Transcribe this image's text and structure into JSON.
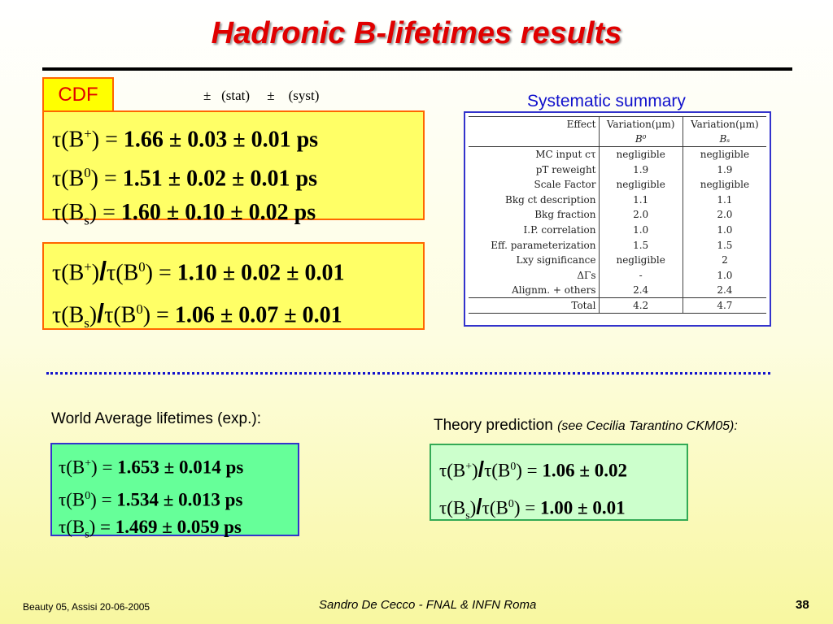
{
  "slide": {
    "title": "Hadronic B-lifetimes results",
    "cdf_label": "CDF",
    "stat_syst_header": "±   (stat)     ±    (syst)"
  },
  "fit_results": {
    "rows": [
      {
        "tau": "τ",
        "open": "(B",
        "sup": "+",
        "sub": "",
        "close": ")",
        "eq": " = ",
        "value": "1.66 ± 0.03 ± 0.01 ps"
      },
      {
        "tau": "τ",
        "open": "(B",
        "sup": "0",
        "sub": "",
        "close": ")",
        "eq": " = ",
        "value": "1.51 ± 0.02 ± 0.01 ps"
      },
      {
        "tau": "τ",
        "open": "(B",
        "sup": "",
        "sub": "s",
        "close": ")",
        "eq": " = ",
        "value": "1.60 ± 0.10 ± 0.02 ps"
      }
    ]
  },
  "ratio_results": {
    "rows": [
      {
        "num_open": "(B",
        "num_sup": "+",
        "num_sub": "",
        "den_sup": "0",
        "value": "1.10 ± 0.02 ± 0.01"
      },
      {
        "num_open": "(B",
        "num_sup": "",
        "num_sub": "s",
        "den_sup": "0",
        "value": "1.06 ± 0.07 ± 0.01"
      }
    ]
  },
  "systematics": {
    "title": "Systematic summary",
    "headers": [
      "Effect",
      "Variation(μm)",
      "Variation(μm)"
    ],
    "subheaders": [
      "",
      "B⁰",
      "Bₛ"
    ],
    "rows": [
      [
        "MC input cτ",
        "negligible",
        "negligible"
      ],
      [
        "pT reweight",
        "1.9",
        "1.9"
      ],
      [
        "Scale Factor",
        "negligible",
        "negligible"
      ],
      [
        "Bkg ct description",
        "1.1",
        "1.1"
      ],
      [
        "Bkg fraction",
        "2.0",
        "2.0"
      ],
      [
        "I.P. correlation",
        "1.0",
        "1.0"
      ],
      [
        "Eff. parameterization",
        "1.5",
        "1.5"
      ],
      [
        "Lxy significance",
        "negligible",
        "2"
      ],
      [
        "ΔΓs",
        "-",
        "1.0"
      ],
      [
        "Alignm. + others",
        "2.4",
        "2.4"
      ]
    ],
    "total": [
      "Total",
      "4.2",
      "4.7"
    ]
  },
  "world_average": {
    "label": "World Average lifetimes (exp.):",
    "rows": [
      {
        "open": "(B",
        "sup": "+",
        "sub": "",
        "value": "1.653 ± 0.014 ps"
      },
      {
        "open": "(B",
        "sup": "0",
        "sub": "",
        "value": "1.534 ± 0.013 ps"
      },
      {
        "open": "(B",
        "sup": "",
        "sub": "s",
        "value": "1.469 ± 0.059 ps"
      }
    ]
  },
  "theory": {
    "label": "Theory prediction",
    "note": "(see Cecilia Tarantino CKM05):",
    "rows": [
      {
        "num_open": "(B",
        "num_sup": "+",
        "num_sub": "",
        "den_sup": "0",
        "value": "1.06 ± 0.02"
      },
      {
        "num_open": "(B",
        "num_sup": "",
        "num_sub": "s",
        "den_sup": "0",
        "value": "1.00 ± 0.01"
      }
    ]
  },
  "footer": {
    "left": "Beauty 05, Assisi 20-06-2005",
    "center": "Sandro De Cecco - FNAL & INFN Roma",
    "page": "38"
  },
  "colors": {
    "title": "#e00000",
    "orange_border": "#ff6600",
    "yellow_box": "#ffff66",
    "green_box": "#66ff99",
    "blue_border": "#3333cc"
  }
}
